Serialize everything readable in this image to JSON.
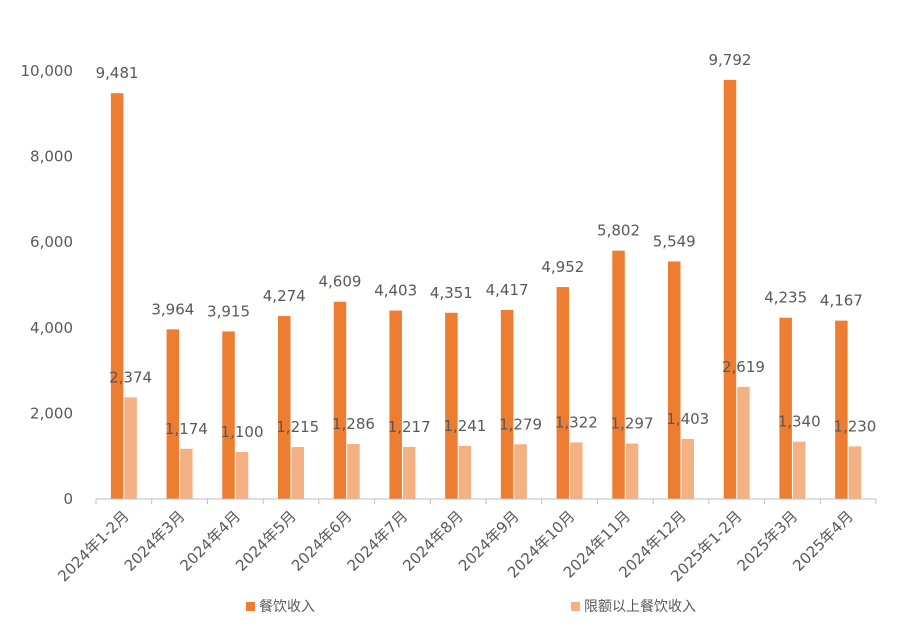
{
  "chart_data": {
    "type": "bar",
    "title": "",
    "xlabel": "",
    "ylabel": "",
    "ylim": [
      0,
      10000
    ],
    "yticks": [
      0,
      2000,
      4000,
      6000,
      8000,
      10000
    ],
    "ytick_labels": [
      "0",
      "2,000",
      "4,000",
      "6,000",
      "8,000",
      "10,000"
    ],
    "categories": [
      "2024年1-2月",
      "2024年3月",
      "2024年4月",
      "2024年5月",
      "2024年6月",
      "2024年7月",
      "2024年8月",
      "2024年9月",
      "2024年10月",
      "2024年11月",
      "2024年12月",
      "2025年1-2月",
      "2025年3月",
      "2025年4月"
    ],
    "series": [
      {
        "name": "餐饮收入",
        "color": "#ED7D31",
        "values": [
          9481,
          3964,
          3915,
          4274,
          4609,
          4403,
          4351,
          4417,
          4952,
          5802,
          5549,
          9792,
          4235,
          4167
        ],
        "labels": [
          "9,481",
          "3,964",
          "3,915",
          "4,274",
          "4,609",
          "4,403",
          "4,351",
          "4,417",
          "4,952",
          "5,802",
          "5,549",
          "9,792",
          "4,235",
          "4,167"
        ]
      },
      {
        "name": "限额以上餐饮收入",
        "color": "#F4B183",
        "values": [
          2374,
          1174,
          1100,
          1215,
          1286,
          1217,
          1241,
          1279,
          1322,
          1297,
          1403,
          2619,
          1340,
          1230
        ],
        "labels": [
          "2,374",
          "1,174",
          "1,100",
          "1,215",
          "1,286",
          "1,217",
          "1,241",
          "1,279",
          "1,322",
          "1,297",
          "1,403",
          "2,619",
          "1,340",
          "1,230"
        ]
      }
    ],
    "legend_position": "bottom"
  }
}
